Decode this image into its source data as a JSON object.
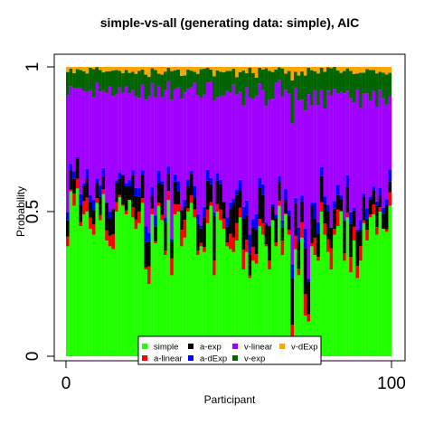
{
  "chart_data": {
    "type": "bar",
    "stacked": true,
    "title": "simple-vs-all (generating data: simple), AIC",
    "xlabel": "Participant",
    "ylabel": "Probability",
    "xlim": [
      0,
      100
    ],
    "ylim": [
      0,
      1
    ],
    "x_ticks": [
      "0",
      "100"
    ],
    "y_ticks": [
      "0",
      "0.5",
      "1"
    ],
    "n_participants": 100,
    "legend_position": "bottom-center",
    "series_order": [
      "simple",
      "a-linear",
      "a-exp",
      "a-dExp",
      "v-linear",
      "v-exp",
      "v-dExp"
    ],
    "colors": {
      "simple": "#22ff00",
      "a-linear": "#ff0000",
      "a-exp": "#000000",
      "a-dExp": "#0000ff",
      "v-linear": "#a000ff",
      "v-exp": "#006400",
      "v-dExp": "#ffa500"
    },
    "legend": [
      {
        "key": "simple",
        "label": "simple"
      },
      {
        "key": "a-linear",
        "label": "a-linear"
      },
      {
        "key": "a-exp",
        "label": "a-exp"
      },
      {
        "key": "a-dExp",
        "label": "a-dExp"
      },
      {
        "key": "v-linear",
        "label": "v-linear"
      },
      {
        "key": "v-exp",
        "label": "v-exp"
      },
      {
        "key": "v-dExp",
        "label": "v-dExp"
      }
    ],
    "simple_values": [
      0.38,
      0.57,
      0.52,
      0.58,
      0.45,
      0.49,
      0.5,
      0.44,
      0.42,
      0.53,
      0.47,
      0.56,
      0.4,
      0.38,
      0.37,
      0.5,
      0.55,
      0.52,
      0.49,
      0.54,
      0.48,
      0.44,
      0.46,
      0.53,
      0.3,
      0.25,
      0.49,
      0.39,
      0.52,
      0.47,
      0.35,
      0.54,
      0.28,
      0.49,
      0.5,
      0.38,
      0.41,
      0.5,
      0.53,
      0.48,
      0.35,
      0.38,
      0.36,
      0.46,
      0.52,
      0.28,
      0.5,
      0.47,
      0.44,
      0.38,
      0.37,
      0.36,
      0.4,
      0.48,
      0.3,
      0.36,
      0.27,
      0.33,
      0.32,
      0.45,
      0.42,
      0.38,
      0.3,
      0.47,
      0.38,
      0.52,
      0.35,
      0.49,
      0.42,
      0.06,
      0.37,
      0.28,
      0.41,
      0.14,
      0.12,
      0.38,
      0.35,
      0.33,
      0.5,
      0.42,
      0.36,
      0.3,
      0.42,
      0.45,
      0.5,
      0.33,
      0.48,
      0.29,
      0.4,
      0.27,
      0.33,
      0.46,
      0.4,
      0.48,
      0.49,
      0.42,
      0.5,
      0.44,
      0.43,
      0.52
    ]
  }
}
